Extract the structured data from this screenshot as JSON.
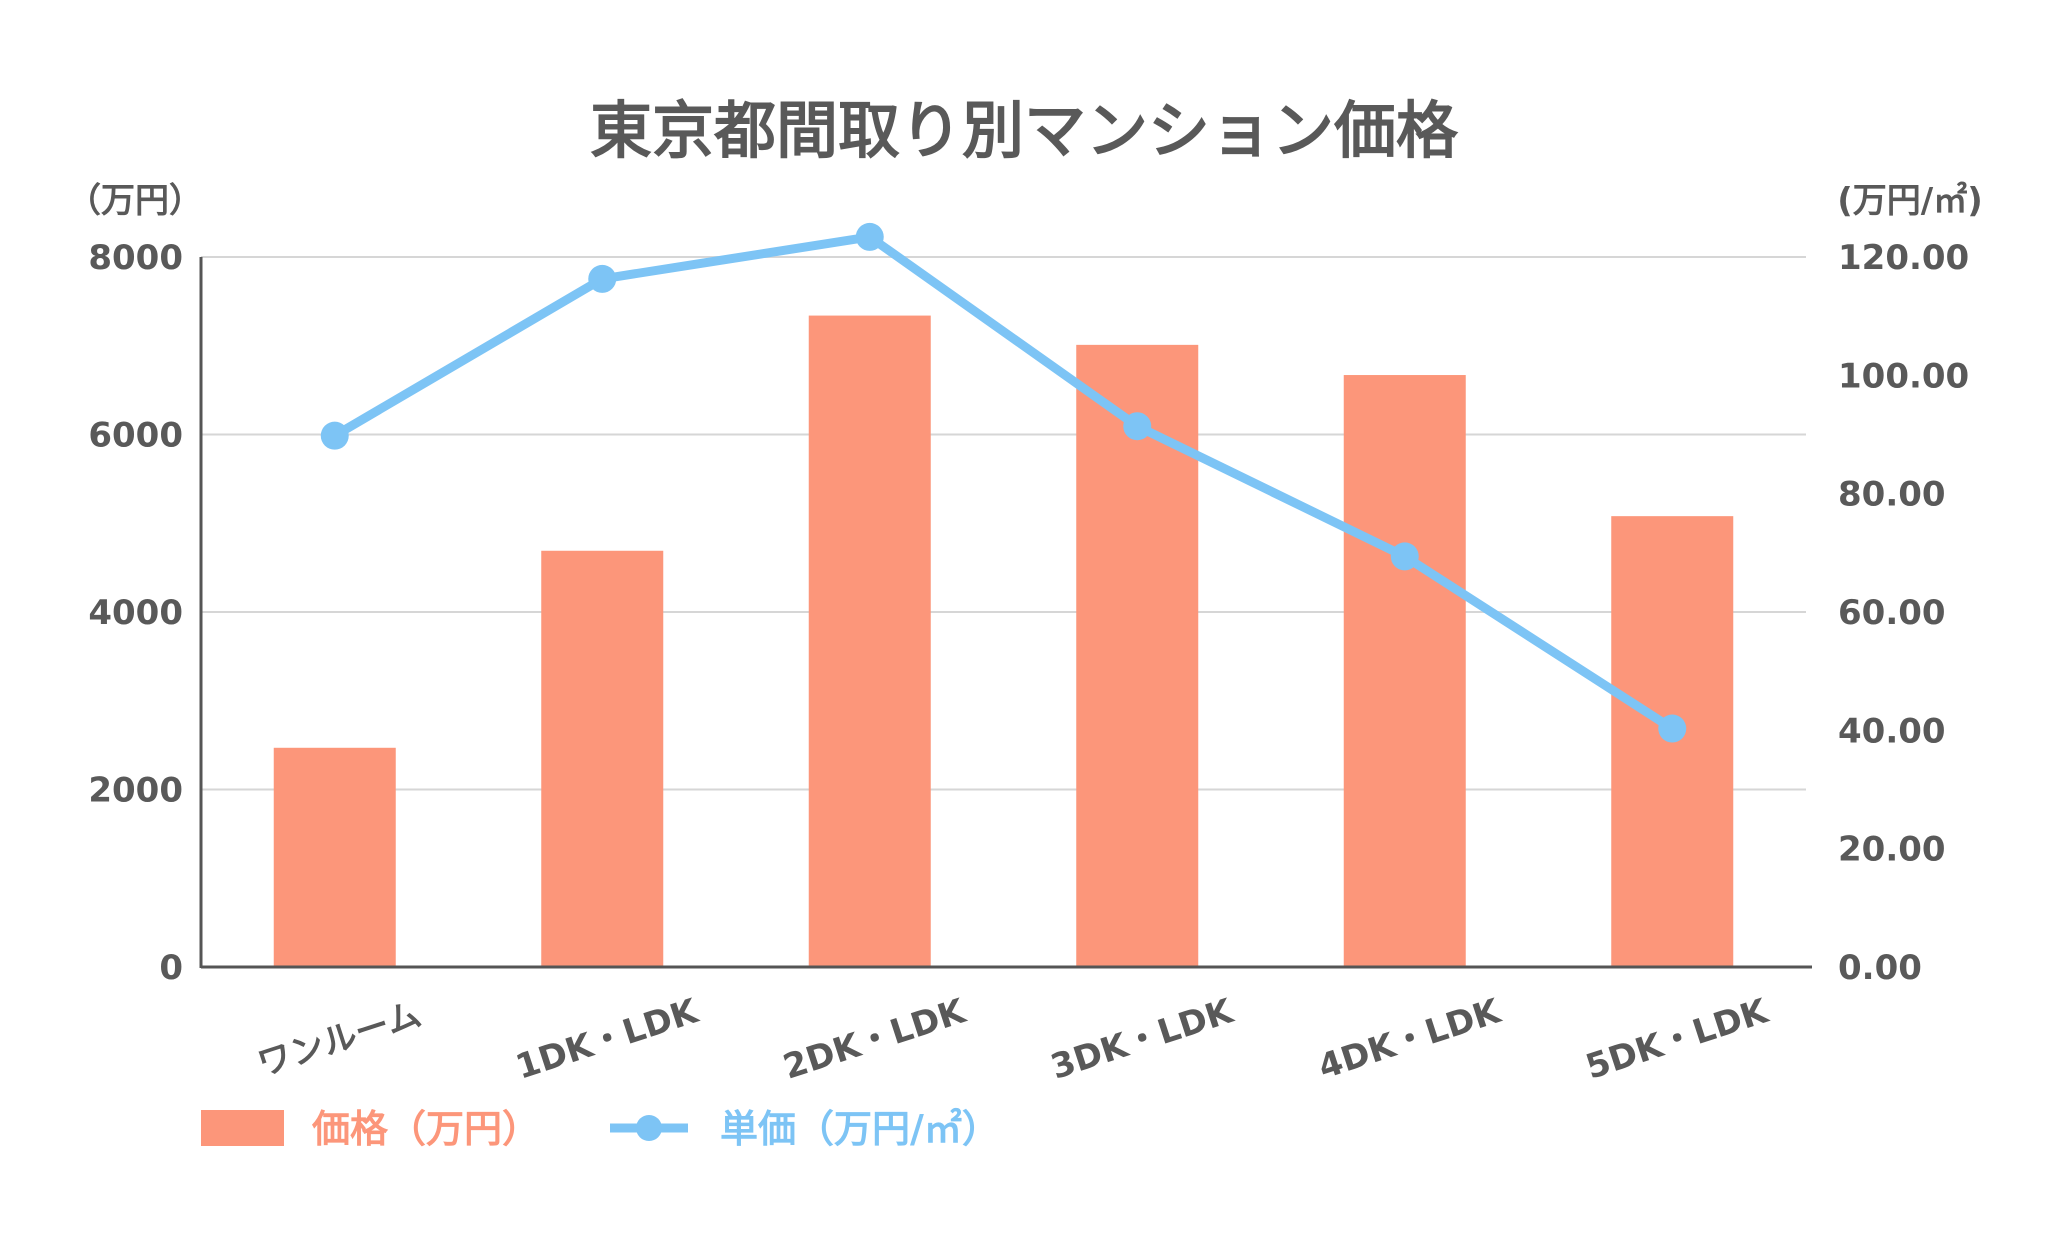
{
  "chart_data": {
    "type": "bar+line",
    "title": "東京都間取り別マンション価格",
    "categories": [
      "ワンルーム",
      "1DK・LDK",
      "2DK・LDK",
      "3DK・LDK",
      "4DK・LDK",
      "5DK・LDK"
    ],
    "series": [
      {
        "name": "価格（万円）",
        "type": "bar",
        "axis": "left",
        "color": "#FC967A",
        "values": [
          2470,
          4690,
          7340,
          7010,
          6670,
          5080
        ]
      },
      {
        "name": "単価（万円/㎡）",
        "type": "line",
        "axis": "right",
        "color": "#7DC4F5",
        "values": [
          89.8,
          116.3,
          123.4,
          91.4,
          69.4,
          40.3
        ]
      }
    ],
    "left_axis": {
      "unit_label": "（万円）",
      "ylim": [
        0,
        8000
      ],
      "ticks": [
        "0",
        "2000",
        "4000",
        "6000",
        "8000"
      ],
      "tick_values": [
        0,
        2000,
        4000,
        6000,
        8000
      ]
    },
    "right_axis": {
      "unit_label": "(万円/㎡)",
      "ylim": [
        0,
        120
      ],
      "ticks": [
        "0.00",
        "20.00",
        "40.00",
        "60.00",
        "80.00",
        "100.00",
        "120.00"
      ],
      "tick_values": [
        0,
        20,
        40,
        60,
        80,
        100,
        120
      ]
    },
    "grid": true,
    "legend_position": "bottom-left"
  }
}
